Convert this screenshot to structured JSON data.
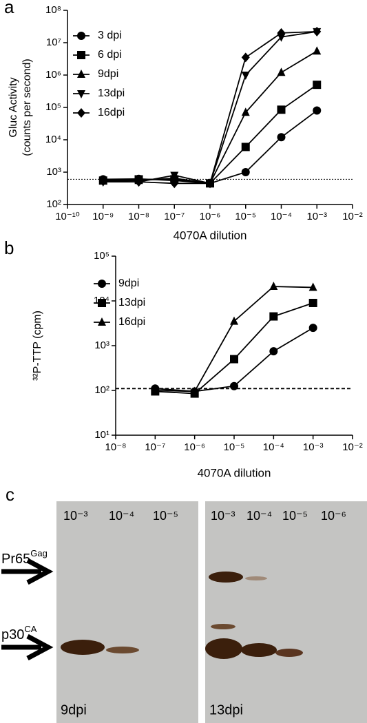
{
  "chart_data": [
    {
      "type": "line",
      "label": "a",
      "xlabel": "4070A dilution",
      "ylabel": [
        "Gluc Activity",
        "(counts per second)"
      ],
      "x": [
        1e-09,
        1e-08,
        1e-07,
        1e-06,
        1e-05,
        0.0001,
        0.001
      ],
      "xlog": true,
      "ylog": true,
      "xlim": [
        1e-10,
        0.01
      ],
      "ylim": [
        100,
        100000000
      ],
      "xticks": [
        {
          "value": 1e-10,
          "label": "10⁻¹⁰"
        },
        {
          "value": 1e-09,
          "label": "10⁻⁹"
        },
        {
          "value": 1e-08,
          "label": "10⁻⁸"
        },
        {
          "value": 1e-07,
          "label": "10⁻⁷"
        },
        {
          "value": 1e-06,
          "label": "10⁻⁶"
        },
        {
          "value": 1e-05,
          "label": "10⁻⁵"
        },
        {
          "value": 0.0001,
          "label": "10⁻⁴"
        },
        {
          "value": 0.001,
          "label": "10⁻³"
        },
        {
          "value": 0.01,
          "label": "10⁻²"
        }
      ],
      "yticks": [
        {
          "value": 100,
          "label": "10²"
        },
        {
          "value": 1000,
          "label": "10³"
        },
        {
          "value": 10000,
          "label": "10⁴"
        },
        {
          "value": 100000,
          "label": "10⁵"
        },
        {
          "value": 1000000,
          "label": "10⁶"
        },
        {
          "value": 10000000,
          "label": "10⁷"
        },
        {
          "value": 100000000,
          "label": "10⁸"
        }
      ],
      "reference_line": 600,
      "legend": "upper left",
      "series": [
        {
          "name": "3 dpi",
          "color": "#000000",
          "marker": "circle",
          "values": [
            600,
            620,
            550,
            450,
            1000,
            12000,
            80000
          ]
        },
        {
          "name": "6 dpi",
          "color": "#000000",
          "marker": "square",
          "values": [
            550,
            600,
            600,
            450,
            6000,
            85000,
            500000
          ]
        },
        {
          "name": "9dpi",
          "color": "#000000",
          "marker": "triangle-up",
          "values": [
            550,
            550,
            650,
            450,
            70000,
            1200000,
            5500000
          ]
        },
        {
          "name": "13dpi",
          "color": "#000000",
          "marker": "triangle-down",
          "values": [
            500,
            500,
            800,
            450,
            1000000,
            15000000,
            22000000
          ]
        },
        {
          "name": "16dpi",
          "color": "#000000",
          "marker": "diamond",
          "values": [
            520,
            500,
            450,
            450,
            3500000,
            20000000,
            22000000
          ]
        }
      ]
    },
    {
      "type": "line",
      "label": "b",
      "xlabel": "4070A dilution",
      "ylabel": [
        "³²P-TTP (cpm)"
      ],
      "x": [
        1e-07,
        1e-06,
        1e-05,
        0.0001,
        0.001
      ],
      "xlog": true,
      "ylog": true,
      "xlim": [
        1e-08,
        0.01
      ],
      "ylim": [
        10,
        100000
      ],
      "xticks": [
        {
          "value": 1e-08,
          "label": "10⁻⁸"
        },
        {
          "value": 1e-07,
          "label": "10⁻⁷"
        },
        {
          "value": 1e-06,
          "label": "10⁻⁶"
        },
        {
          "value": 1e-05,
          "label": "10⁻⁵"
        },
        {
          "value": 0.0001,
          "label": "10⁻⁴"
        },
        {
          "value": 0.001,
          "label": "10⁻³"
        },
        {
          "value": 0.01,
          "label": "10⁻²"
        }
      ],
      "yticks": [
        {
          "value": 10,
          "label": "10¹"
        },
        {
          "value": 100,
          "label": "10²"
        },
        {
          "value": 1000,
          "label": "10³"
        },
        {
          "value": 10000,
          "label": "10⁴"
        },
        {
          "value": 100000,
          "label": "10⁵"
        }
      ],
      "reference_line": 110,
      "legend": "upper left",
      "series": [
        {
          "name": "9dpi",
          "color": "#000000",
          "marker": "circle",
          "values": [
            110,
            95,
            125,
            750,
            2500
          ]
        },
        {
          "name": "13dpi",
          "color": "#000000",
          "marker": "square",
          "values": [
            95,
            85,
            500,
            4500,
            9000
          ]
        },
        {
          "name": "16dpi",
          "color": "#000000",
          "marker": "triangle-up",
          "values": [
            100,
            95,
            3500,
            21000,
            20000
          ]
        }
      ]
    }
  ],
  "blot": {
    "label": "c",
    "markers": [
      {
        "text": "Pr65",
        "sup": "Gag"
      },
      {
        "text": "p30",
        "sup": "CA"
      }
    ],
    "panels": [
      {
        "lanes": [
          "10⁻³",
          "10⁻⁴",
          "10⁻⁵"
        ],
        "caption": "9dpi"
      },
      {
        "lanes": [
          "10⁻³",
          "10⁻⁴",
          "10⁻⁵",
          "10⁻⁶"
        ],
        "caption": "13dpi"
      }
    ]
  }
}
